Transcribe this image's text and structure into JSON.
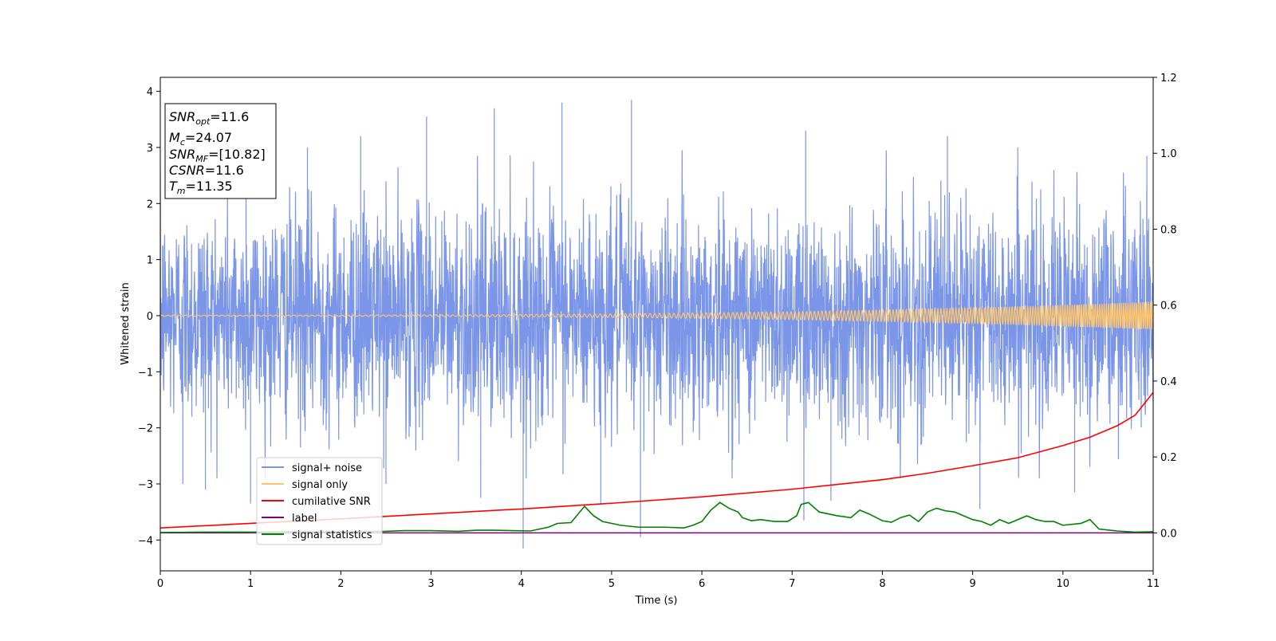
{
  "chart_data": {
    "type": "line",
    "title": "",
    "xlabel": "Time (s)",
    "ylabel": "Whitened strain",
    "xlim": [
      0,
      11
    ],
    "ylim": [
      -4.55,
      4.25
    ],
    "ylim_right": [
      -0.1,
      1.2
    ],
    "x_ticks": [
      0,
      1,
      2,
      3,
      4,
      5,
      6,
      7,
      8,
      9,
      10,
      11
    ],
    "y_ticks": [
      -4,
      -3,
      -2,
      -1,
      0,
      1,
      2,
      3,
      4
    ],
    "y_ticks_right": [
      0.0,
      0.2,
      0.4,
      0.6,
      0.8,
      1.0,
      1.2
    ],
    "grid": false,
    "legend_position": "lower-left",
    "annotation": {
      "snr_opt": {
        "symbol": "SNR",
        "sub": "opt",
        "value": "=11.6"
      },
      "mc": {
        "symbol": "M",
        "sub": "c",
        "value": "=24.07"
      },
      "snr_mf": {
        "symbol": "SNR",
        "sub": "MF",
        "value": "=[10.82]"
      },
      "csnr": {
        "symbol": "CSNR",
        "value": "=11.6"
      },
      "tm": {
        "symbol": "T",
        "sub": "m",
        "value": "=11.35"
      }
    },
    "series": [
      {
        "name": "signal+ noise",
        "color": "#7b96e8",
        "axis": "left",
        "style": "noise",
        "sigma": 0.95,
        "peak_spikes": [
          [
            0.95,
            2.5
          ],
          [
            1.63,
            3.0
          ],
          [
            2.22,
            3.2
          ],
          [
            2.95,
            3.55
          ],
          [
            3.7,
            3.7
          ],
          [
            4.45,
            3.8
          ],
          [
            5.22,
            3.85
          ],
          [
            7.15,
            3.3
          ],
          [
            8.72,
            3.2
          ],
          [
            9.5,
            3.0
          ],
          [
            10.93,
            2.85
          ]
        ],
        "trough_spikes": [
          [
            0.25,
            -3.0
          ],
          [
            0.5,
            -3.1
          ],
          [
            1.0,
            -3.35
          ],
          [
            2.5,
            -3.0
          ],
          [
            3.55,
            -3.25
          ],
          [
            4.02,
            -4.15
          ],
          [
            4.88,
            -3.35
          ],
          [
            5.32,
            -3.95
          ],
          [
            7.13,
            -3.65
          ],
          [
            7.43,
            -3.3
          ],
          [
            9.08,
            -3.45
          ],
          [
            10.13,
            -3.15
          ]
        ]
      },
      {
        "name": "signal only",
        "color": "#ffc56a",
        "axis": "left",
        "style": "chirp",
        "amplitude_start": 0.01,
        "amplitude_end": 0.25,
        "frequency_start_hz": 15,
        "frequency_end_hz": 45,
        "t_merger": 11.35
      },
      {
        "name": "cumilative SNR",
        "color": "#ff0000",
        "axis": "right",
        "x": [
          0,
          1,
          2,
          3,
          4,
          5,
          6,
          7,
          8,
          8.5,
          9,
          9.5,
          10,
          10.3,
          10.6,
          10.8,
          11
        ],
        "values": [
          0.013,
          0.025,
          0.037,
          0.05,
          0.063,
          0.078,
          0.095,
          0.115,
          0.14,
          0.157,
          0.177,
          0.198,
          0.23,
          0.252,
          0.282,
          0.31,
          0.37
        ]
      },
      {
        "name": "label",
        "color": "#800080",
        "axis": "right",
        "x": [
          0,
          11
        ],
        "values": [
          0.0,
          0.0
        ]
      },
      {
        "name": "signal statistics",
        "color": "#008000",
        "axis": "right",
        "x": [
          0,
          0.5,
          1,
          1.5,
          2,
          2.5,
          2.7,
          3,
          3.3,
          3.5,
          3.7,
          3.9,
          4.1,
          4.3,
          4.4,
          4.55,
          4.7,
          4.8,
          4.9,
          5.1,
          5.3,
          5.6,
          5.8,
          5.9,
          6.0,
          6.1,
          6.2,
          6.3,
          6.4,
          6.45,
          6.55,
          6.65,
          6.8,
          6.95,
          7.05,
          7.1,
          7.18,
          7.3,
          7.5,
          7.65,
          7.75,
          7.85,
          8.0,
          8.1,
          8.2,
          8.3,
          8.4,
          8.5,
          8.6,
          8.7,
          8.8,
          8.9,
          9.0,
          9.1,
          9.2,
          9.3,
          9.4,
          9.5,
          9.6,
          9.7,
          9.8,
          9.9,
          10.0,
          10.2,
          10.3,
          10.4,
          10.6,
          10.8,
          11
        ],
        "values": [
          0.001,
          0.002,
          0.002,
          0.003,
          0.003,
          0.004,
          0.006,
          0.006,
          0.004,
          0.007,
          0.007,
          0.006,
          0.005,
          0.015,
          0.025,
          0.027,
          0.07,
          0.045,
          0.03,
          0.02,
          0.015,
          0.015,
          0.013,
          0.02,
          0.03,
          0.06,
          0.08,
          0.065,
          0.055,
          0.04,
          0.032,
          0.035,
          0.03,
          0.03,
          0.045,
          0.075,
          0.08,
          0.055,
          0.045,
          0.04,
          0.06,
          0.05,
          0.032,
          0.028,
          0.04,
          0.047,
          0.03,
          0.055,
          0.065,
          0.058,
          0.055,
          0.045,
          0.035,
          0.03,
          0.02,
          0.035,
          0.025,
          0.035,
          0.045,
          0.035,
          0.03,
          0.03,
          0.02,
          0.025,
          0.035,
          0.01,
          0.005,
          0.002,
          0.003
        ]
      }
    ]
  }
}
